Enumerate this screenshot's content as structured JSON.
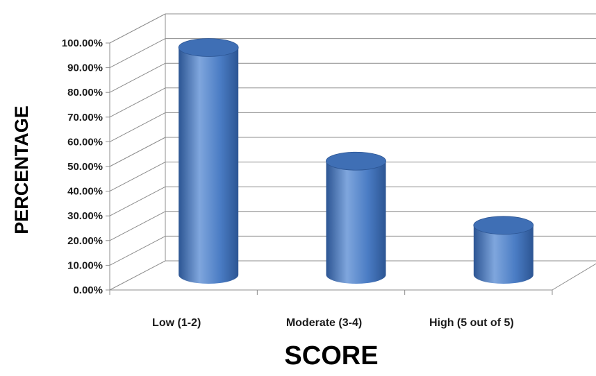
{
  "chart_data": {
    "type": "bar",
    "style": "3d-cylinder",
    "categories": [
      "Low (1-2)",
      "Moderate (3-4)",
      "High (5 out of 5)"
    ],
    "values": [
      92.0,
      46.0,
      20.0
    ],
    "value_unit": "%",
    "xlabel": "SCORE",
    "ylabel": "PERCENTAGE",
    "ylim": [
      0,
      100
    ],
    "yticks": [
      "0.00%",
      "10.00%",
      "20.00%",
      "30.00%",
      "40.00%",
      "50.00%",
      "60.00%",
      "70.00%",
      "80.00%",
      "90.00%",
      "100.00%"
    ],
    "grid": true,
    "legend": "none",
    "colors": {
      "bar_light": "#7fa6dd",
      "bar_mid": "#4a7cc4",
      "bar_dark": "#2c5593",
      "bar_top": "#3f6fb5",
      "grid": "#8c8c8c"
    }
  }
}
